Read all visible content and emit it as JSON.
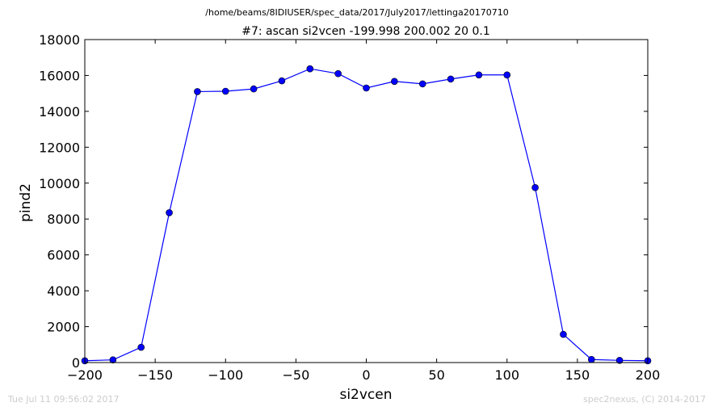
{
  "figure": {
    "suptitle": "/home/beams/8IDIUSER/spec_data/2017/July2017/lettinga20170710",
    "footer_left": "Tue Jul 11 09:56:02 2017",
    "footer_right": "spec2nexus, (C) 2014-2017"
  },
  "chart_data": {
    "type": "line",
    "title": "#7: ascan  si2vcen -199.998 200.002  20 0.1",
    "xlabel": "si2vcen",
    "ylabel": "pind2",
    "xlim": [
      -200,
      200
    ],
    "ylim": [
      0,
      18000
    ],
    "xticks": [
      -200,
      -150,
      -100,
      -50,
      0,
      50,
      100,
      150,
      200
    ],
    "xtick_labels": [
      "−200",
      "−150",
      "−100",
      "−50",
      "0",
      "50",
      "100",
      "150",
      "200"
    ],
    "yticks": [
      0,
      2000,
      4000,
      6000,
      8000,
      10000,
      12000,
      14000,
      16000,
      18000
    ],
    "ytick_labels": [
      "0",
      "2000",
      "4000",
      "6000",
      "8000",
      "10000",
      "12000",
      "14000",
      "16000",
      "18000"
    ],
    "grid": false,
    "legend": false,
    "series": [
      {
        "color": "#0000ff",
        "marker": "circle",
        "x": [
          -200,
          -180,
          -160,
          -140,
          -120,
          -100,
          -80,
          -60,
          -40,
          -20,
          0,
          20,
          40,
          60,
          80,
          100,
          120,
          140,
          160,
          180,
          200
        ],
        "y": [
          100,
          150,
          850,
          8350,
          15100,
          15120,
          15250,
          15700,
          16370,
          16100,
          15300,
          15670,
          15530,
          15800,
          16030,
          16030,
          9750,
          1570,
          170,
          120,
          100
        ]
      }
    ]
  }
}
